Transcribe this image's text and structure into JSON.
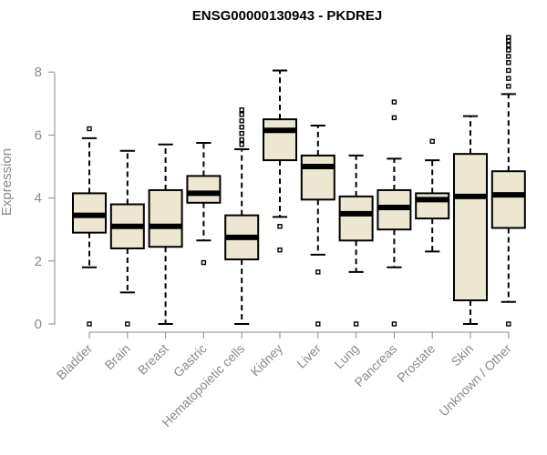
{
  "chart_data": {
    "type": "boxplot",
    "title": "ENSG00000130943 - PKDREJ",
    "xlabel": "",
    "ylabel": "Expression",
    "ylim": [
      0,
      9
    ],
    "yticks": [
      0,
      2,
      4,
      6,
      8
    ],
    "grid": false,
    "categories": [
      "Bladder",
      "Brain",
      "Breast",
      "Gastric",
      "Hematopoietic cells",
      "Kidney",
      "Liver",
      "Lung",
      "Pancreas",
      "Prostate",
      "Skin",
      "Unknown / Other"
    ],
    "boxes": [
      {
        "name": "Bladder",
        "whisker_low": 1.8,
        "q1": 2.9,
        "median": 3.45,
        "q3": 4.15,
        "whisker_high": 5.9,
        "outliers": [
          0.0,
          6.2
        ]
      },
      {
        "name": "Brain",
        "whisker_low": 1.0,
        "q1": 2.4,
        "median": 3.1,
        "q3": 3.8,
        "whisker_high": 5.5,
        "outliers": [
          0.0
        ]
      },
      {
        "name": "Breast",
        "whisker_low": 0.0,
        "q1": 2.45,
        "median": 3.1,
        "q3": 4.25,
        "whisker_high": 5.7,
        "outliers": []
      },
      {
        "name": "Gastric",
        "whisker_low": 2.65,
        "q1": 3.85,
        "median": 4.15,
        "q3": 4.7,
        "whisker_high": 5.75,
        "outliers": [
          1.95
        ]
      },
      {
        "name": "Hematopoietic cells",
        "whisker_low": 0.0,
        "q1": 2.05,
        "median": 2.75,
        "q3": 3.45,
        "whisker_high": 5.55,
        "outliers": [
          5.7,
          5.85,
          6.05,
          6.25,
          6.45,
          6.65,
          6.8
        ]
      },
      {
        "name": "Kidney",
        "whisker_low": 3.4,
        "q1": 5.2,
        "median": 6.15,
        "q3": 6.5,
        "whisker_high": 8.05,
        "outliers": [
          2.35,
          3.1
        ]
      },
      {
        "name": "Liver",
        "whisker_low": 2.2,
        "q1": 3.95,
        "median": 5.0,
        "q3": 5.35,
        "whisker_high": 6.3,
        "outliers": [
          0.0,
          1.65
        ]
      },
      {
        "name": "Lung",
        "whisker_low": 1.65,
        "q1": 2.65,
        "median": 3.5,
        "q3": 4.05,
        "whisker_high": 5.35,
        "outliers": [
          0.0
        ]
      },
      {
        "name": "Pancreas",
        "whisker_low": 1.8,
        "q1": 3.0,
        "median": 3.7,
        "q3": 4.25,
        "whisker_high": 5.25,
        "outliers": [
          0.0,
          6.55,
          7.05
        ]
      },
      {
        "name": "Prostate",
        "whisker_low": 2.3,
        "q1": 3.35,
        "median": 3.95,
        "q3": 4.15,
        "whisker_high": 5.2,
        "outliers": [
          5.8
        ]
      },
      {
        "name": "Skin",
        "whisker_low": 0.0,
        "q1": 0.75,
        "median": 4.05,
        "q3": 5.4,
        "whisker_high": 6.6,
        "outliers": []
      },
      {
        "name": "Unknown / Other",
        "whisker_low": 0.7,
        "q1": 3.05,
        "median": 4.1,
        "q3": 4.85,
        "whisker_high": 7.3,
        "outliers": [
          0.0,
          7.55,
          7.8,
          8.05,
          8.3,
          8.5,
          8.7,
          8.85,
          9.0,
          9.1
        ]
      }
    ]
  },
  "colors": {
    "box_fill": "#ede6d0",
    "line": "#000000",
    "axis": "#8a8a8a"
  }
}
